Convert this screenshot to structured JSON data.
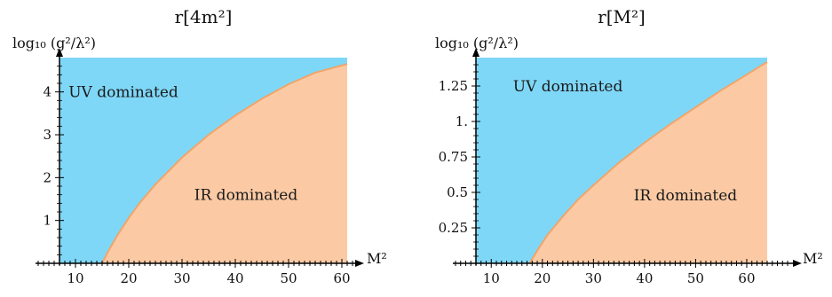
{
  "chart_data": [
    {
      "type": "area",
      "title": "r[4m²]",
      "xlabel": "M²",
      "ylabel": "log₁₀ (g²/λ²)",
      "xlim": [
        7,
        61
      ],
      "ylim": [
        0,
        4.8
      ],
      "xticks": [
        10,
        20,
        30,
        40,
        50,
        60
      ],
      "yticks": [
        1,
        2,
        3,
        4
      ],
      "ytick_labels": [
        "1",
        "2",
        "3",
        "4"
      ],
      "regions": [
        {
          "name": "UV dominated",
          "color": "#7fd7f7",
          "label_at": [
            19,
            4
          ]
        },
        {
          "name": "IR dominated",
          "color": "#fbcaa4",
          "label_at": [
            42,
            1.6
          ]
        }
      ],
      "boundary_color": "#f0a56a",
      "boundary": {
        "x": [
          15,
          16,
          18,
          20,
          22,
          25,
          30,
          35,
          40,
          45,
          50,
          55,
          61
        ],
        "y": [
          0,
          0.25,
          0.68,
          1.06,
          1.4,
          1.84,
          2.47,
          3.0,
          3.45,
          3.84,
          4.18,
          4.45,
          4.65
        ]
      }
    },
    {
      "type": "area",
      "title": "r[M²]",
      "xlabel": "M²",
      "ylabel": "log₁₀ (g²/λ²)",
      "xlim": [
        7,
        64
      ],
      "ylim": [
        0,
        1.45
      ],
      "xticks": [
        10,
        20,
        30,
        40,
        50,
        60
      ],
      "yticks": [
        0.25,
        0.5,
        0.75,
        1.0,
        1.25
      ],
      "ytick_labels": [
        "0.25",
        "0.5",
        "0.75",
        "1.",
        "1.25"
      ],
      "regions": [
        {
          "name": "UV dominated",
          "color": "#7fd7f7",
          "label_at": [
            25,
            1.25
          ]
        },
        {
          "name": "IR dominated",
          "color": "#fbcaa4",
          "label_at": [
            48,
            0.48
          ]
        }
      ],
      "boundary_color": "#f0a56a",
      "boundary": {
        "x": [
          17.5,
          19,
          21,
          24,
          27,
          30,
          35,
          40,
          45,
          50,
          55,
          60,
          64
        ],
        "y": [
          0,
          0.09,
          0.2,
          0.33,
          0.45,
          0.55,
          0.71,
          0.85,
          0.98,
          1.1,
          1.22,
          1.33,
          1.42
        ]
      }
    }
  ]
}
